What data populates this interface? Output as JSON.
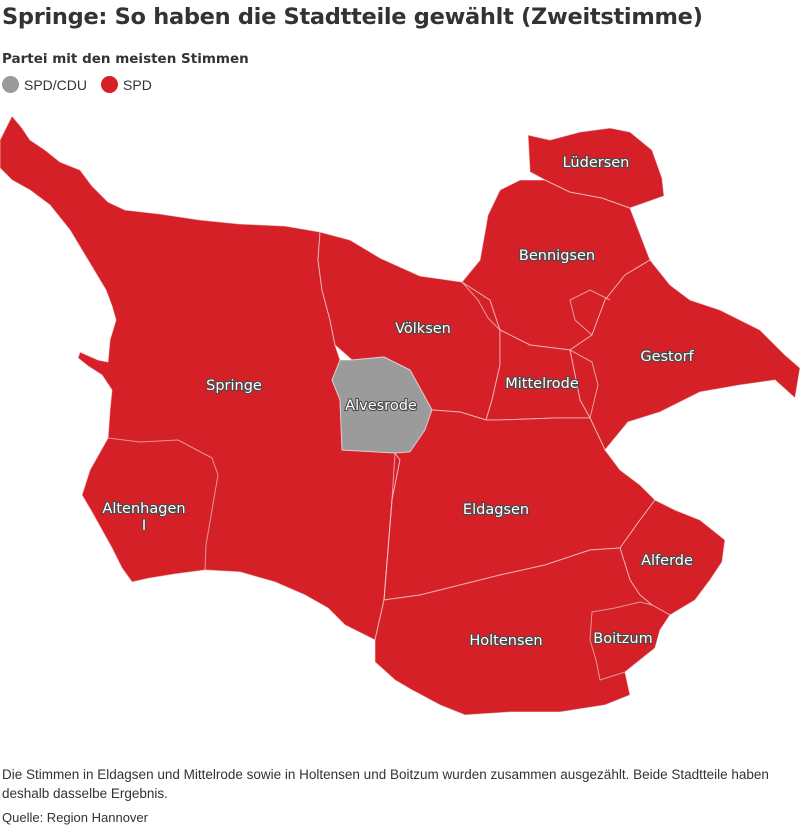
{
  "title": "Springe: So haben die Stadtteile gewählt (Zweitstimme)",
  "legend": {
    "title": "Partei mit den meisten Stimmen",
    "items": [
      {
        "label": "SPD/CDU",
        "color": "#9b9b9b"
      },
      {
        "label": "SPD",
        "color": "#d62027"
      }
    ]
  },
  "districts": {
    "luedersen": {
      "name": "Lüdersen",
      "party": "SPD"
    },
    "bennigsen": {
      "name": "Bennigsen",
      "party": "SPD"
    },
    "voelksen": {
      "name": "Völksen",
      "party": "SPD"
    },
    "gestorf": {
      "name": "Gestorf",
      "party": "SPD"
    },
    "springe": {
      "name": "Springe",
      "party": "SPD"
    },
    "alvesrode": {
      "name": "Alvesrode",
      "party": "SPD/CDU"
    },
    "mittelrode": {
      "name": "Mittelrode",
      "party": "SPD"
    },
    "altenhagen": {
      "name_line1": "Altenhagen",
      "name_line2": "I",
      "party": "SPD"
    },
    "eldagsen": {
      "name": "Eldagsen",
      "party": "SPD"
    },
    "alferde": {
      "name": "Alferde",
      "party": "SPD"
    },
    "holtensen": {
      "name": "Holtensen",
      "party": "SPD"
    },
    "boitzum": {
      "name": "Boitzum",
      "party": "SPD"
    }
  },
  "footnote": "Die Stimmen in Eldagsen und Mittelrode sowie in Holtensen und Boitzum wurden zusammen ausgezählt. Beide Stadtteile haben deshalb dasselbe Ergebnis.",
  "source": "Quelle: Region Hannover"
}
